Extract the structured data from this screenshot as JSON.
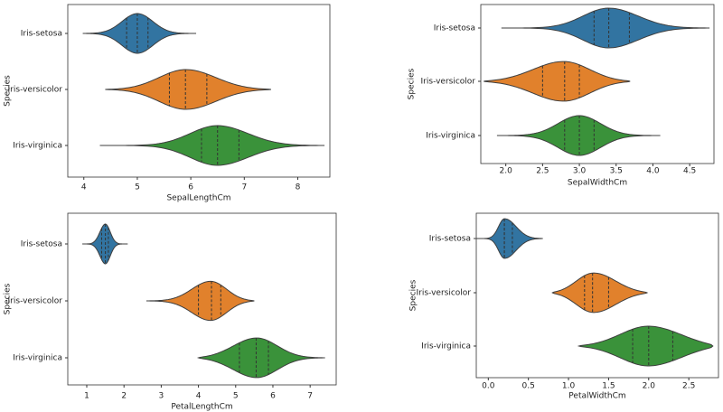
{
  "chart_data": [
    {
      "type": "violin",
      "xlabel": "SepalLengthCm",
      "ylabel": "Species",
      "categories": [
        "Iris-setosa",
        "Iris-versicolor",
        "Iris-virginica"
      ],
      "colors": [
        "#3274a1",
        "#e1812c",
        "#3a923a"
      ],
      "min": [
        3.98,
        4.4,
        4.3
      ],
      "q1": [
        4.8,
        5.6,
        6.2
      ],
      "median": [
        5.0,
        5.9,
        6.5
      ],
      "q3": [
        5.2,
        6.3,
        6.9
      ],
      "max": [
        6.1,
        7.5,
        8.5
      ],
      "xlim": [
        3.7,
        8.6
      ],
      "xticks": [
        4,
        5,
        6,
        7,
        8
      ]
    },
    {
      "type": "violin",
      "xlabel": "SepalWidthCm",
      "ylabel": "Species",
      "categories": [
        "Iris-setosa",
        "Iris-versicolor",
        "Iris-virginica"
      ],
      "colors": [
        "#3274a1",
        "#e1812c",
        "#3a923a"
      ],
      "min": [
        1.94,
        1.7,
        1.88
      ],
      "q1": [
        3.2,
        2.5,
        2.8
      ],
      "median": [
        3.4,
        2.8,
        3.0
      ],
      "q3": [
        3.68,
        3.0,
        3.2
      ],
      "max": [
        4.77,
        3.69,
        4.1
      ],
      "xlim": [
        1.66,
        4.83
      ],
      "xticks": [
        {
          "value": 2,
          "label": "2.0"
        },
        2.5,
        {
          "value": 3,
          "label": "3.0"
        },
        3.5,
        {
          "value": 4,
          "label": "4.0"
        },
        4.5
      ]
    },
    {
      "type": "violin",
      "xlabel": "PetalLengthCm",
      "ylabel": "Species",
      "categories": [
        "Iris-setosa",
        "Iris-versicolor",
        "Iris-virginica"
      ],
      "colors": [
        "#3274a1",
        "#e1812c",
        "#3a923a"
      ],
      "min": [
        0.88,
        2.6,
        4.0
      ],
      "q1": [
        1.4,
        4.0,
        5.1
      ],
      "median": [
        1.5,
        4.35,
        5.55
      ],
      "q3": [
        1.58,
        4.6,
        5.88
      ],
      "max": [
        2.1,
        5.5,
        7.4
      ],
      "xlim": [
        0.49,
        7.7
      ],
      "xticks": [
        1,
        2,
        3,
        4,
        5,
        6,
        7
      ]
    },
    {
      "type": "violin",
      "xlabel": "PetalWidthCm",
      "ylabel": "Species",
      "categories": [
        "Iris-setosa",
        "Iris-versicolor",
        "Iris-virginica"
      ],
      "colors": [
        "#3274a1",
        "#e1812c",
        "#3a923a"
      ],
      "min": [
        -0.18,
        0.8,
        1.13
      ],
      "q1": [
        0.2,
        1.2,
        1.8
      ],
      "median": [
        0.2,
        1.3,
        2.0
      ],
      "q3": [
        0.3,
        1.5,
        2.3
      ],
      "max": [
        0.68,
        1.98,
        2.8
      ],
      "xlim": [
        -0.15,
        2.87
      ],
      "xticks": [
        {
          "value": 0,
          "label": "0.0"
        },
        0.5,
        {
          "value": 1,
          "label": "1.0"
        },
        1.5,
        {
          "value": 2,
          "label": "2.0"
        },
        2.5
      ]
    }
  ]
}
